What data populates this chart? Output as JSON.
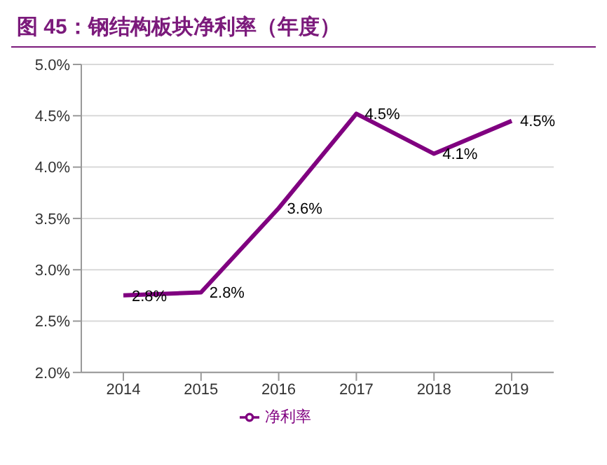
{
  "chart_data": {
    "type": "line",
    "title": "图 45：钢结构板块净利率（年度）",
    "categories": [
      "2014",
      "2015",
      "2016",
      "2017",
      "2018",
      "2019"
    ],
    "series": [
      {
        "name": "净利率",
        "color": "#800080",
        "values": [
          2.75,
          2.78,
          3.6,
          4.52,
          4.13,
          4.45
        ],
        "value_labels": [
          "2.8%",
          "2.8%",
          "3.6%",
          "4.5%",
          "4.1%",
          "4.5%"
        ]
      }
    ],
    "ylim": [
      2.0,
      5.0
    ],
    "yticks": [
      {
        "value": 2.0,
        "label": "2.0%"
      },
      {
        "value": 2.5,
        "label": "2.5%"
      },
      {
        "value": 3.0,
        "label": "3.0%"
      },
      {
        "value": 3.5,
        "label": "3.5%"
      },
      {
        "value": 4.0,
        "label": "4.0%"
      },
      {
        "value": 4.5,
        "label": "4.5%"
      },
      {
        "value": 5.0,
        "label": "5.0%"
      }
    ],
    "grid": "y",
    "legend": "bottom",
    "marker": "none",
    "line_style": "solid"
  }
}
